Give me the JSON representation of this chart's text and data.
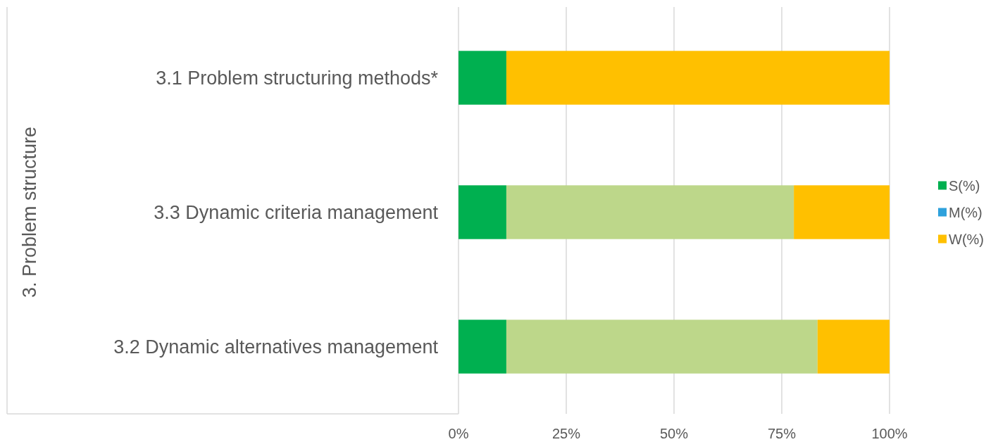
{
  "chart_data": {
    "type": "bar",
    "orientation": "horizontal",
    "stacked": true,
    "ylabel": "3. Problem structure",
    "categories": [
      "3.1 Problem structuring methods*",
      "3.3  Dynamic criteria management",
      "3.2 Dynamic alternatives management"
    ],
    "series": [
      {
        "name": "S(%)",
        "color": "#00b050",
        "values": [
          11.1,
          11.1,
          11.1
        ]
      },
      {
        "name": "M(%)",
        "color": "#2ea1dc",
        "values": [
          0,
          0,
          0
        ]
      },
      {
        "color": "#bdd78a",
        "values": [
          0,
          66.7,
          72.2
        ]
      },
      {
        "name": "W(%)",
        "color": "#ffc000",
        "values": [
          88.9,
          22.2,
          16.7
        ]
      }
    ],
    "xlim": [
      0,
      100
    ],
    "xticks": [
      {
        "value": 0,
        "label": "0%"
      },
      {
        "value": 25,
        "label": "25%"
      },
      {
        "value": 50,
        "label": "50%"
      },
      {
        "value": 75,
        "label": "75%"
      },
      {
        "value": 100,
        "label": "100%"
      }
    ],
    "grid": "x",
    "legend": "right"
  }
}
